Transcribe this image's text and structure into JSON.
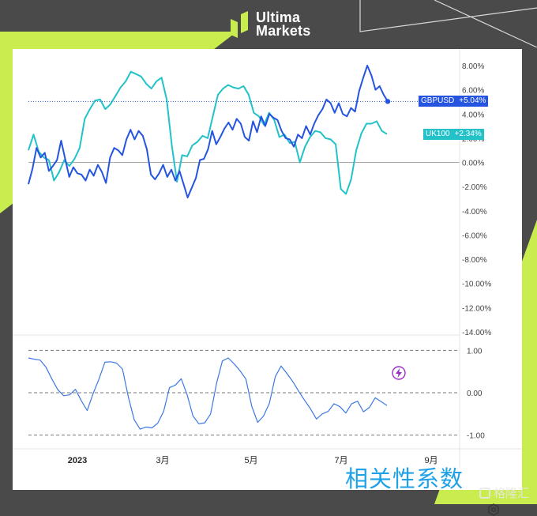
{
  "brand": {
    "name_line1": "Ultima",
    "name_line2": "Markets"
  },
  "watermark": "格隆汇",
  "correlation_title": "相关性系数",
  "colors": {
    "gbpusd": "#2554e0",
    "uk100": "#23c2c9",
    "correlation": "#3d78e3",
    "accent": "#c9ec4e",
    "background": "#4a4a4a"
  },
  "badges": {
    "gbpusd": {
      "name": "GBPUSD",
      "value": "+5.04%"
    },
    "uk100": {
      "name": "UK100",
      "value": "+2.34%"
    }
  },
  "icons": [
    "logo-icon",
    "flash-icon",
    "gear-icon",
    "watermark-icon"
  ],
  "chart_data": [
    {
      "type": "line",
      "title": "",
      "yaxis_ticks": [
        "8.00%",
        "6.00%",
        "4.00%",
        "2.00%",
        "0.00%",
        "-2.00%",
        "-4.00%",
        "-6.00%",
        "-8.00%",
        "-10.00%",
        "-12.00%",
        "-14.00%"
      ],
      "ylim": [
        -14,
        8
      ],
      "x_ticks": [
        "2023",
        "3月",
        "5月",
        "7月",
        "9月"
      ],
      "grid": false,
      "reference_line_y": 0,
      "series": [
        {
          "name": "GBPUSD",
          "last_value": 5.04,
          "values": [
            -1.8,
            -0.5,
            1.2,
            0.4,
            0.8,
            -0.7,
            -0.3,
            0.2,
            1.8,
            0.3,
            -1.2,
            -0.4,
            -0.9,
            -1.0,
            -1.5,
            -0.6,
            -1.1,
            -0.2,
            -0.8,
            -1.7,
            0.4,
            1.2,
            1.0,
            0.6,
            1.9,
            2.7,
            1.9,
            2.6,
            2.2,
            1.1,
            -1.0,
            -1.4,
            -0.9,
            -0.2,
            -1.2,
            -0.6,
            -1.5,
            -0.7,
            -1.8,
            -2.9,
            -2.1,
            -1.3,
            0.2,
            0.3,
            1.1,
            2.6,
            1.5,
            2.1,
            2.8,
            3.3,
            2.7,
            3.6,
            3.2,
            2.1,
            1.8,
            3.4,
            2.5,
            3.8,
            3.0,
            4.0,
            3.7,
            3.5,
            2.6,
            2.0,
            1.9,
            1.3,
            2.3,
            2.0,
            3.0,
            2.3,
            3.2,
            3.9,
            4.4,
            5.2,
            4.9,
            4.1,
            4.9,
            4.0,
            3.8,
            4.5,
            4.2,
            5.9,
            7.0,
            8.0,
            7.2,
            6.0,
            6.3,
            5.6,
            5.04
          ]
        },
        {
          "name": "UK100",
          "last_value": 2.34,
          "values": [
            1.0,
            2.3,
            0.9,
            0.4,
            0.2,
            -1.5,
            -0.8,
            0.2,
            -0.3,
            0.3,
            1.2,
            3.6,
            4.4,
            5.1,
            5.2,
            4.4,
            4.8,
            5.5,
            6.2,
            6.7,
            7.5,
            7.3,
            7.1,
            6.5,
            6.1,
            6.7,
            7.0,
            5.2,
            1.4,
            -1.6,
            0.6,
            0.5,
            1.4,
            1.7,
            2.2,
            2.0,
            3.8,
            5.6,
            6.1,
            6.4,
            6.2,
            6.1,
            6.3,
            5.6,
            4.1,
            3.8,
            3.1,
            4.1,
            3.5,
            2.1,
            2.3,
            1.6,
            1.7,
            0.0,
            1.3,
            2.1,
            2.6,
            2.5,
            2.0,
            1.9,
            1.5,
            -2.2,
            -2.6,
            -1.4,
            1.0,
            2.4,
            3.2,
            3.2,
            3.4,
            2.6,
            2.34
          ]
        }
      ]
    },
    {
      "type": "line",
      "title": "相关性系数",
      "yaxis_ticks": [
        "1.00",
        "0.00",
        "-1.00"
      ],
      "ylim": [
        -1.1,
        1.1
      ],
      "x_ticks": [
        "2023",
        "3月",
        "5月",
        "7月",
        "9月"
      ],
      "reference_lines_y": [
        1,
        0,
        -1
      ],
      "grid": false,
      "series": [
        {
          "name": "",
          "values": [
            0.82,
            0.79,
            0.77,
            0.6,
            0.32,
            0.07,
            -0.07,
            -0.05,
            0.08,
            -0.19,
            -0.42,
            -0.02,
            0.32,
            0.72,
            0.73,
            0.7,
            0.56,
            -0.1,
            -0.64,
            -0.86,
            -0.81,
            -0.83,
            -0.72,
            -0.44,
            0.12,
            0.18,
            0.33,
            -0.05,
            -0.55,
            -0.73,
            -0.71,
            -0.5,
            0.22,
            0.75,
            0.82,
            0.68,
            0.52,
            0.32,
            -0.32,
            -0.7,
            -0.55,
            -0.25,
            0.38,
            0.63,
            0.45,
            0.26,
            0.03,
            -0.18,
            -0.38,
            -0.62,
            -0.5,
            -0.44,
            -0.26,
            -0.33,
            -0.48,
            -0.26,
            -0.2,
            -0.45,
            -0.35,
            -0.12,
            -0.21,
            -0.3
          ]
        }
      ]
    }
  ]
}
